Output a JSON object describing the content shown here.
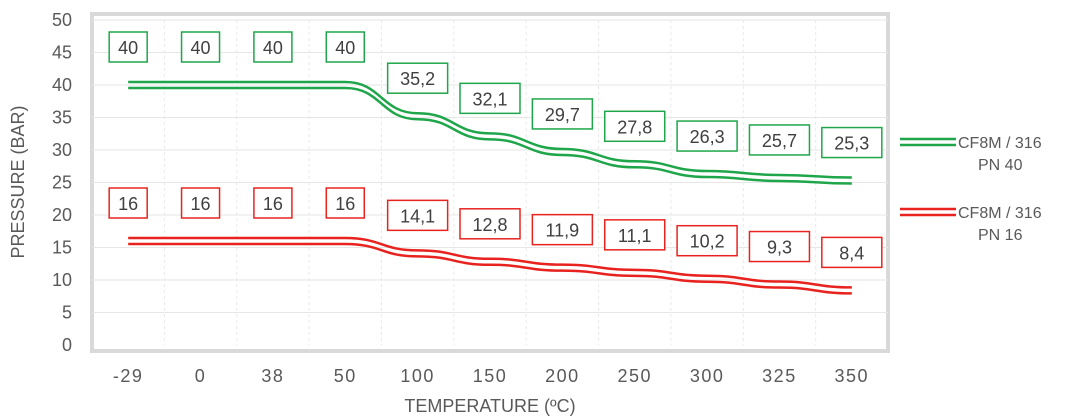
{
  "chart_data": {
    "type": "line",
    "title": "",
    "xlabel": "TEMPERATURE (ºC)",
    "ylabel": "PRESSURE (BAR)",
    "ylim": [
      0,
      50
    ],
    "yticks": [
      0,
      5,
      10,
      15,
      20,
      25,
      30,
      35,
      40,
      45,
      50
    ],
    "categories": [
      "-29",
      "0",
      "38",
      "50",
      "100",
      "150",
      "200",
      "250",
      "300",
      "325",
      "350"
    ],
    "grid": "vertical dashed + horizontal, light gray",
    "legend_position": "right",
    "series": [
      {
        "name": "CF8M / 316",
        "name_line2": "PN 40",
        "color": "#1fa64a",
        "values": [
          40,
          40,
          40,
          40,
          35.2,
          32.1,
          29.7,
          27.8,
          26.3,
          25.7,
          25.3
        ],
        "labels": [
          "40",
          "40",
          "40",
          "40",
          "35,2",
          "32,1",
          "29,7",
          "27,8",
          "26,3",
          "25,7",
          "25,3"
        ]
      },
      {
        "name": "CF8M / 316",
        "name_line2": "PN 16",
        "color": "#e8231f",
        "values": [
          16,
          16,
          16,
          16,
          14.1,
          12.8,
          11.9,
          11.1,
          10.2,
          9.3,
          8.4
        ],
        "labels": [
          "16",
          "16",
          "16",
          "16",
          "14,1",
          "12,8",
          "11,9",
          "11,1",
          "10,2",
          "9,3",
          "8,4"
        ]
      }
    ]
  }
}
